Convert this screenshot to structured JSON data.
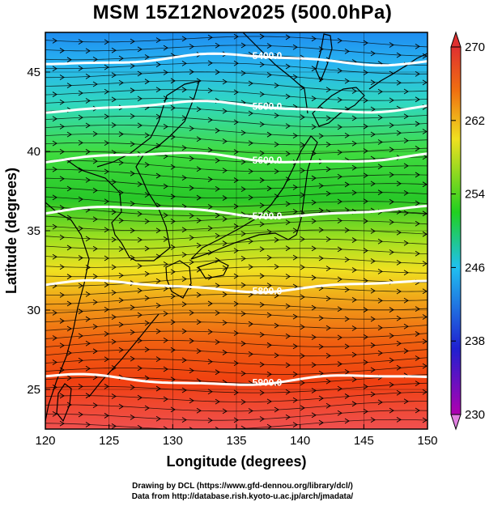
{
  "title": "MSM 15Z12Nov2025 (500.0hPa)",
  "x_axis": {
    "label": "Longitude (degrees)",
    "range": [
      120,
      150
    ],
    "ticks": [
      120,
      125,
      130,
      135,
      140,
      145,
      150
    ]
  },
  "y_axis": {
    "label": "Latitude  (degrees)",
    "range": [
      22.5,
      47.5
    ],
    "ticks": [
      25,
      30,
      35,
      40,
      45
    ]
  },
  "colorbar": {
    "range": [
      230,
      270
    ],
    "ticks": [
      230,
      238,
      246,
      254,
      262,
      270
    ],
    "stops": [
      "#b000b0",
      "#2020d0",
      "#20c0f0",
      "#20d020",
      "#f0e020",
      "#f07010",
      "#e03030"
    ]
  },
  "contours": [
    {
      "label": "5400.0",
      "lat": 45.8
    },
    {
      "label": "5500.0",
      "lat": 42.8
    },
    {
      "label": "5600.0",
      "lat": 39.6
    },
    {
      "label": "5700.0",
      "lat": 36.2
    },
    {
      "label": "5800.0",
      "lat": 31.5
    },
    {
      "label": "5900.0",
      "lat": 25.6
    }
  ],
  "credits": {
    "line1": "Drawing by DCL (https://www.gfd-dennou.org/library/dcl/)",
    "line2": "Data from http://database.rish.kyoto-u.ac.jp/arch/jmadata/"
  }
}
